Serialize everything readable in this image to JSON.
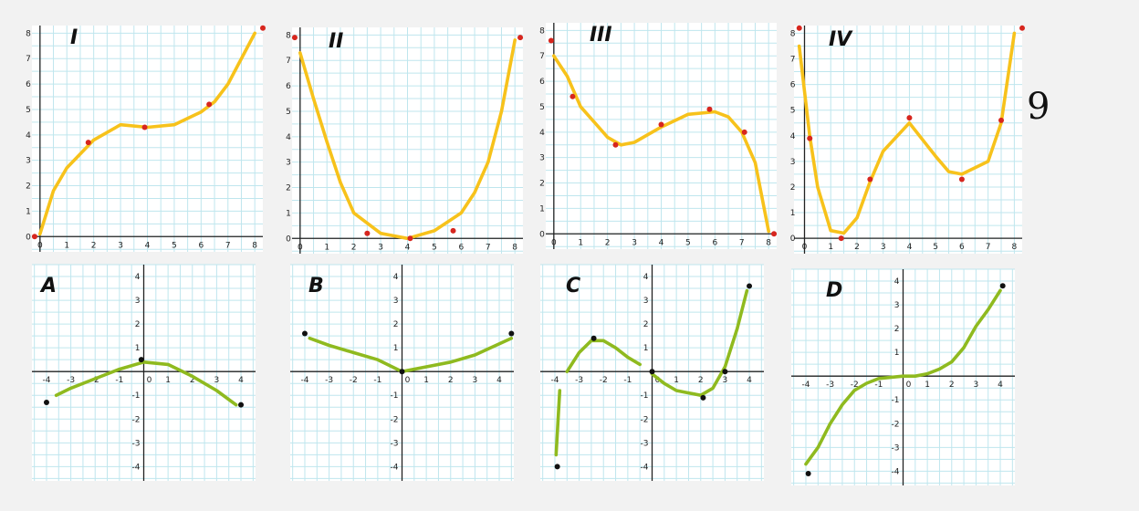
{
  "colors": {
    "top_curve": "#f7c21b",
    "top_marker": "#d7261e",
    "bottom_curve": "#8fba1f",
    "bottom_marker": "#111111",
    "grid": "#bfe6ee"
  },
  "side_mark": "9",
  "chart_data": [
    {
      "type": "line",
      "label": "I",
      "xlim": [
        0,
        8
      ],
      "ylim": [
        0,
        8
      ],
      "grid": true,
      "x_ticks": [
        0,
        1,
        2,
        3,
        4,
        5,
        6,
        7,
        8
      ],
      "y_ticks": [
        0,
        1,
        2,
        3,
        4,
        5,
        6,
        7,
        8
      ],
      "series": [
        {
          "x": [
            0,
            0.5,
            1,
            2,
            3,
            4,
            5,
            6,
            6.5,
            7,
            8
          ],
          "y": [
            0.1,
            1.8,
            2.7,
            3.8,
            4.4,
            4.3,
            4.4,
            4.9,
            5.3,
            6.0,
            8.0
          ]
        }
      ],
      "markers": [
        {
          "x": -0.2,
          "y": 0
        },
        {
          "x": 1.8,
          "y": 3.7
        },
        {
          "x": 3.9,
          "y": 4.3
        },
        {
          "x": 6.3,
          "y": 5.2
        },
        {
          "x": 8.3,
          "y": 8.2
        }
      ]
    },
    {
      "type": "line",
      "label": "II",
      "xlim": [
        0,
        8
      ],
      "ylim": [
        0,
        8
      ],
      "grid": true,
      "x_ticks": [
        0,
        1,
        2,
        3,
        4,
        5,
        6,
        7,
        8
      ],
      "y_ticks": [
        0,
        1,
        2,
        3,
        4,
        5,
        6,
        7,
        8
      ],
      "series": [
        {
          "x": [
            0,
            0.5,
            1,
            1.5,
            2,
            3,
            3.5,
            4,
            5,
            6,
            6.5,
            7,
            7.5,
            8
          ],
          "y": [
            7.3,
            5.5,
            3.8,
            2.2,
            1.0,
            0.2,
            0.1,
            0.0,
            0.3,
            1.0,
            1.8,
            3.0,
            5.0,
            7.8
          ]
        }
      ],
      "markers": [
        {
          "x": -0.2,
          "y": 7.9
        },
        {
          "x": 2.5,
          "y": 0.2
        },
        {
          "x": 4.1,
          "y": 0.0
        },
        {
          "x": 5.7,
          "y": 0.3
        },
        {
          "x": 8.2,
          "y": 7.9
        }
      ]
    },
    {
      "type": "line",
      "label": "III",
      "xlim": [
        0,
        8
      ],
      "ylim": [
        0,
        8
      ],
      "grid": true,
      "x_ticks": [
        0,
        1,
        2,
        3,
        4,
        5,
        6,
        7,
        8
      ],
      "y_ticks": [
        0,
        1,
        2,
        3,
        4,
        5,
        6,
        7,
        8
      ],
      "series": [
        {
          "x": [
            0,
            0.5,
            1,
            1.5,
            2,
            2.5,
            3,
            4,
            5,
            6,
            6.5,
            7,
            7.5,
            8
          ],
          "y": [
            7.0,
            6.2,
            5.0,
            4.4,
            3.8,
            3.5,
            3.6,
            4.2,
            4.7,
            4.8,
            4.6,
            4.0,
            2.8,
            0.1
          ]
        }
      ],
      "markers": [
        {
          "x": -0.1,
          "y": 7.6
        },
        {
          "x": 0.7,
          "y": 5.4
        },
        {
          "x": 2.3,
          "y": 3.5
        },
        {
          "x": 4.0,
          "y": 4.3
        },
        {
          "x": 5.8,
          "y": 4.9
        },
        {
          "x": 7.1,
          "y": 4.0
        },
        {
          "x": 8.2,
          "y": 0.0
        }
      ]
    },
    {
      "type": "line",
      "label": "IV",
      "xlim": [
        0,
        8
      ],
      "ylim": [
        0,
        8
      ],
      "grid": true,
      "x_ticks": [
        0,
        1,
        2,
        3,
        4,
        5,
        6,
        7,
        8
      ],
      "y_ticks": [
        0,
        1,
        2,
        3,
        4,
        5,
        6,
        7,
        8
      ],
      "series": [
        {
          "x": [
            -0.2,
            0.2,
            0.5,
            1,
            1.5,
            2,
            2.5,
            3,
            4,
            5,
            5.5,
            6,
            7,
            7.5,
            8
          ],
          "y": [
            7.5,
            4.0,
            2.0,
            0.3,
            0.2,
            0.8,
            2.2,
            3.4,
            4.5,
            3.2,
            2.6,
            2.5,
            3.0,
            4.5,
            8.0
          ]
        }
      ],
      "markers": [
        {
          "x": -0.2,
          "y": 8.2
        },
        {
          "x": 0.2,
          "y": 3.9
        },
        {
          "x": 1.4,
          "y": 0.0
        },
        {
          "x": 2.5,
          "y": 2.3
        },
        {
          "x": 4.0,
          "y": 4.7
        },
        {
          "x": 6.0,
          "y": 2.3
        },
        {
          "x": 7.5,
          "y": 4.6
        },
        {
          "x": 8.3,
          "y": 8.2
        }
      ]
    },
    {
      "type": "line",
      "label": "A",
      "xlim": [
        -4,
        4
      ],
      "ylim": [
        -4,
        4
      ],
      "grid": true,
      "x_ticks": [
        -4,
        -3,
        -2,
        -1,
        0,
        1,
        2,
        3,
        4
      ],
      "y_ticks": [
        -4,
        -3,
        -2,
        -1,
        1,
        2,
        3,
        4
      ],
      "series": [
        {
          "x": [
            -3.6,
            -3,
            -2,
            -1,
            0,
            1,
            2,
            3,
            3.8
          ],
          "y": [
            -1.0,
            -0.7,
            -0.3,
            0.1,
            0.4,
            0.3,
            -0.2,
            -0.8,
            -1.4
          ]
        }
      ],
      "markers": [
        {
          "x": -4.0,
          "y": -1.3
        },
        {
          "x": -0.1,
          "y": 0.5
        },
        {
          "x": 4.0,
          "y": -1.4
        }
      ]
    },
    {
      "type": "line",
      "label": "B",
      "xlim": [
        -4,
        4
      ],
      "ylim": [
        -4,
        4
      ],
      "grid": true,
      "x_ticks": [
        -4,
        -3,
        -2,
        -1,
        0,
        1,
        2,
        3,
        4
      ],
      "y_ticks": [
        -4,
        -3,
        -2,
        -1,
        1,
        2,
        3,
        4
      ],
      "series": [
        {
          "x": [
            -3.8,
            -3,
            -2,
            -1,
            0,
            1,
            2,
            3,
            4.5
          ],
          "y": [
            1.4,
            1.1,
            0.8,
            0.5,
            0.0,
            0.2,
            0.4,
            0.7,
            1.4
          ]
        }
      ],
      "markers": [
        {
          "x": -4.0,
          "y": 1.6
        },
        {
          "x": 0.0,
          "y": 0.0
        },
        {
          "x": 4.5,
          "y": 1.6
        }
      ]
    },
    {
      "type": "line",
      "label": "C",
      "xlim": [
        -4,
        4
      ],
      "ylim": [
        -4,
        4
      ],
      "grid": true,
      "x_ticks": [
        -4,
        -3,
        -2,
        -1,
        0,
        1,
        2,
        3,
        4
      ],
      "y_ticks": [
        -4,
        -3,
        -2,
        -1,
        1,
        2,
        3,
        4
      ],
      "series": [
        {
          "x": [
            -3.95,
            -3.8
          ],
          "y": [
            -3.5,
            -0.8
          ]
        },
        {
          "x": [
            -3.5,
            -3,
            -2.5,
            -2,
            -1.5,
            -1,
            -0.5
          ],
          "y": [
            0.0,
            0.8,
            1.3,
            1.3,
            1.0,
            0.6,
            0.3
          ]
        },
        {
          "x": [
            0,
            0.5,
            1,
            1.5,
            2,
            2.5,
            3,
            3.5,
            3.9
          ],
          "y": [
            -0.1,
            -0.5,
            -0.8,
            -0.9,
            -1.0,
            -0.7,
            0.2,
            1.8,
            3.4
          ]
        }
      ],
      "markers": [
        {
          "x": -3.9,
          "y": -4.0
        },
        {
          "x": -2.4,
          "y": 1.4
        },
        {
          "x": 0.0,
          "y": 0.0
        },
        {
          "x": 2.1,
          "y": -1.1
        },
        {
          "x": 3.0,
          "y": 0.0
        },
        {
          "x": 4.0,
          "y": 3.6
        }
      ]
    },
    {
      "type": "line",
      "label": "D",
      "xlim": [
        -4,
        4
      ],
      "ylim": [
        -4,
        4
      ],
      "grid": true,
      "x_ticks": [
        -4,
        -3,
        -2,
        -1,
        0,
        1,
        2,
        3,
        4
      ],
      "y_ticks": [
        -4,
        -3,
        -2,
        -1,
        1,
        2,
        3,
        4
      ],
      "series": [
        {
          "x": [
            -4,
            -3.5,
            -3,
            -2.5,
            -2,
            -1.5,
            -1,
            0,
            0.5,
            1,
            1.5,
            2,
            2.5,
            3,
            3.5,
            4
          ],
          "y": [
            -3.7,
            -3.0,
            -2.0,
            -1.2,
            -0.6,
            -0.3,
            -0.1,
            0.0,
            0.0,
            0.1,
            0.3,
            0.6,
            1.2,
            2.1,
            2.8,
            3.6
          ]
        }
      ],
      "markers": [
        {
          "x": -3.9,
          "y": -4.1
        },
        {
          "x": 4.1,
          "y": 3.8
        }
      ]
    }
  ]
}
